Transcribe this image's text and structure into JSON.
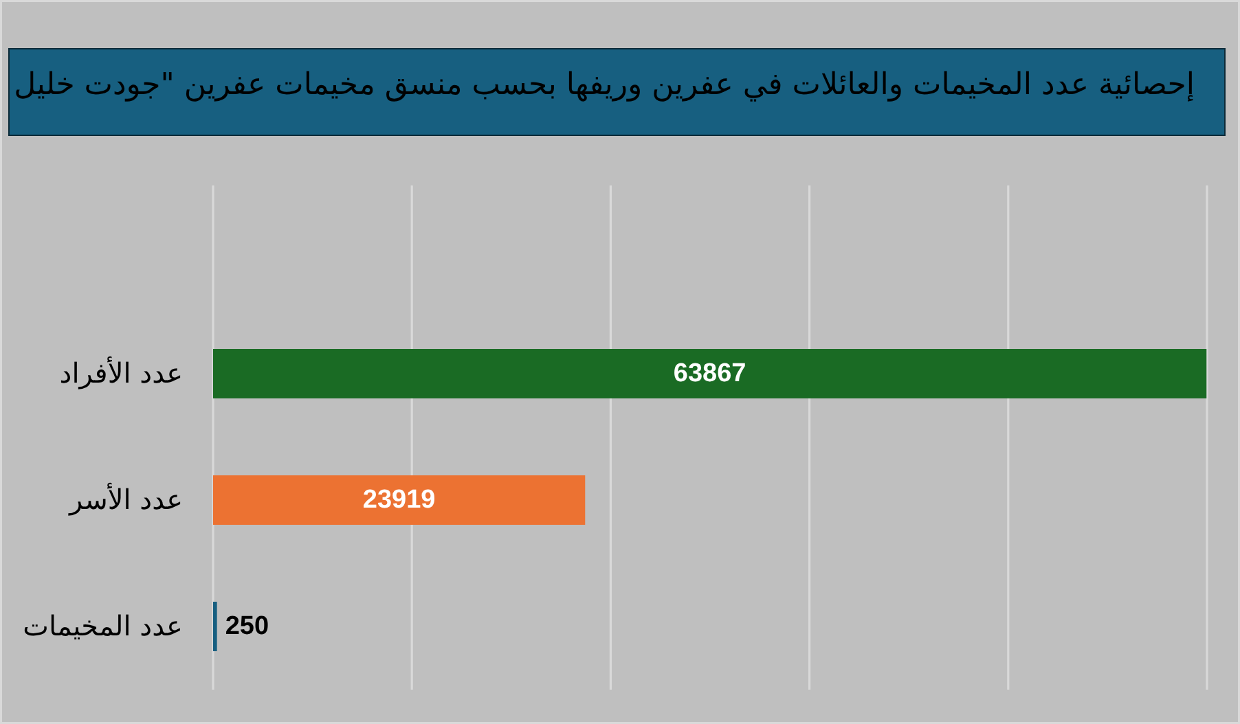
{
  "chart_data": {
    "type": "bar",
    "orientation": "horizontal",
    "title": "إحصائية عدد المخيمات والعائلات في عفرين وريفها بحسب منسق مخيمات عفرين \"جودت خليل",
    "categories": [
      "عدد الأفراد",
      "عدد الأسر",
      "عدد المخيمات"
    ],
    "values": [
      63867,
      23919,
      250
    ],
    "colors": [
      "#1a6b24",
      "#ec7232",
      "#165e80"
    ],
    "xlim": [
      0,
      63900
    ],
    "xticks": [
      {
        "value": 0,
        "label": null
      },
      {
        "value": 12780,
        "label": null
      },
      {
        "value": 25560,
        "label": null
      },
      {
        "value": 38340,
        "label": null
      },
      {
        "value": 51120,
        "label": null
      },
      {
        "value": 63900,
        "label": null
      }
    ],
    "grid": "x",
    "data_labels": true,
    "tick_labels": "y"
  }
}
